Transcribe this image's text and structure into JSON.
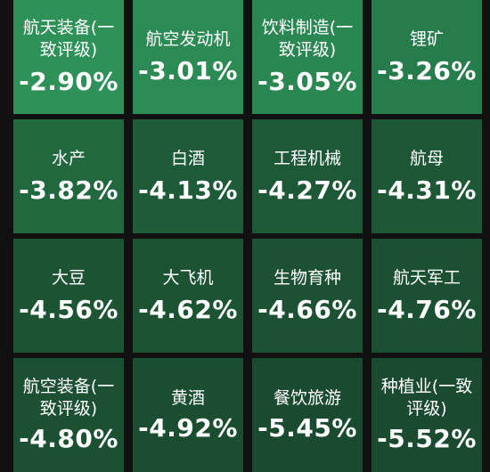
{
  "tiles": [
    {
      "name": "航天装备(一致评级)",
      "change": "-2.90%",
      "color": "#2e9158"
    },
    {
      "name": "航空发动机",
      "change": "-3.01%",
      "color": "#2c8a54"
    },
    {
      "name": "饮料制造(一致评级)",
      "change": "-3.05%",
      "color": "#2b8752"
    },
    {
      "name": "锂矿",
      "change": "-3.26%",
      "color": "#277c4b"
    },
    {
      "name": "水产",
      "change": "-3.82%",
      "color": "#21683f"
    },
    {
      "name": "白酒",
      "change": "-4.13%",
      "color": "#1e5c39"
    },
    {
      "name": "工程机械",
      "change": "-4.27%",
      "color": "#1d5837"
    },
    {
      "name": "航母",
      "change": "-4.31%",
      "color": "#1d5736"
    },
    {
      "name": "大豆",
      "change": "-4.56%",
      "color": "#1c5434"
    },
    {
      "name": "大飞机",
      "change": "-4.62%",
      "color": "#1c5333"
    },
    {
      "name": "生物育种",
      "change": "-4.66%",
      "color": "#1c5233"
    },
    {
      "name": "航天军工",
      "change": "-4.76%",
      "color": "#1b5032"
    },
    {
      "name": "航空装备(一致评级)",
      "change": "-4.80%",
      "color": "#1b5032"
    },
    {
      "name": "黄酒",
      "change": "-4.92%",
      "color": "#1b4e31"
    },
    {
      "name": "餐饮旅游",
      "change": "-5.45%",
      "color": "#1a4a2f"
    },
    {
      "name": "种植业(一致评级)",
      "change": "-5.52%",
      "color": "#1a4a2f"
    }
  ]
}
